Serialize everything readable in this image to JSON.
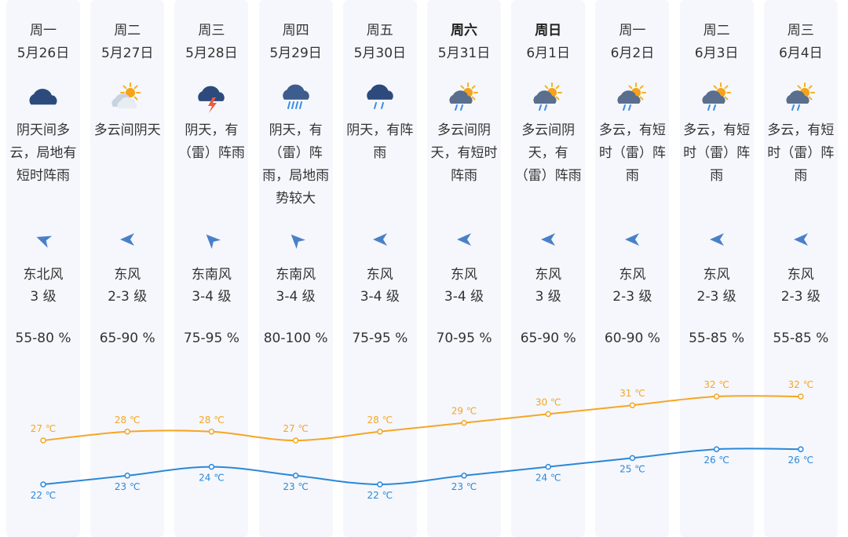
{
  "days": [
    {
      "dow": "周一",
      "date": "5月26日",
      "weather": "阴天间多云，局地有短时阵雨",
      "icon": "cloudy-icon",
      "wind_dir": "东北风",
      "wind_level": "3 级",
      "wind_arrow_deg": 20,
      "humidity": "55-80 %",
      "high": "27 ℃",
      "low": "22 ℃",
      "bold": false
    },
    {
      "dow": "周二",
      "date": "5月27日",
      "weather": "多云间阴天",
      "icon": "partly-cloudy-icon",
      "wind_dir": "东风",
      "wind_level": "2-3 级",
      "wind_arrow_deg": 0,
      "humidity": "65-90 %",
      "high": "28 ℃",
      "low": "23 ℃",
      "bold": false
    },
    {
      "dow": "周三",
      "date": "5月28日",
      "weather": "阴天，有（雷）阵雨",
      "icon": "thunderstorm-icon",
      "wind_dir": "东南风",
      "wind_level": "3-4 级",
      "wind_arrow_deg": 45,
      "humidity": "75-95 %",
      "high": "28 ℃",
      "low": "24 ℃",
      "bold": false
    },
    {
      "dow": "周四",
      "date": "5月29日",
      "weather": "阴天，有（雷）阵雨，局地雨势较大",
      "icon": "heavy-rain-icon",
      "wind_dir": "东南风",
      "wind_level": "3-4 级",
      "wind_arrow_deg": 45,
      "humidity": "80-100 %",
      "high": "27 ℃",
      "low": "23 ℃",
      "bold": false
    },
    {
      "dow": "周五",
      "date": "5月30日",
      "weather": "阴天，有阵雨",
      "icon": "rain-icon",
      "wind_dir": "东风",
      "wind_level": "3-4 级",
      "wind_arrow_deg": 0,
      "humidity": "75-95 %",
      "high": "28 ℃",
      "low": "22 ℃",
      "bold": false
    },
    {
      "dow": "周六",
      "date": "5月31日",
      "weather": "多云间阴天，有短时阵雨",
      "icon": "sun-cloud-rain-icon",
      "wind_dir": "东风",
      "wind_level": "3-4 级",
      "wind_arrow_deg": 0,
      "humidity": "70-95 %",
      "high": "29 ℃",
      "low": "23 ℃",
      "bold": true
    },
    {
      "dow": "周日",
      "date": "6月1日",
      "weather": "多云间阴天，有（雷）阵雨",
      "icon": "sun-cloud-rain-icon",
      "wind_dir": "东风",
      "wind_level": "3 级",
      "wind_arrow_deg": 0,
      "humidity": "65-90 %",
      "high": "30 ℃",
      "low": "24 ℃",
      "bold": true
    },
    {
      "dow": "周一",
      "date": "6月2日",
      "weather": "多云，有短时（雷）阵雨",
      "icon": "sun-cloud-rain-icon",
      "wind_dir": "东风",
      "wind_level": "2-3 级",
      "wind_arrow_deg": 0,
      "humidity": "60-90 %",
      "high": "31 ℃",
      "low": "25 ℃",
      "bold": false
    },
    {
      "dow": "周二",
      "date": "6月3日",
      "weather": "多云，有短时（雷）阵雨",
      "icon": "sun-cloud-rain-icon",
      "wind_dir": "东风",
      "wind_level": "2-3 级",
      "wind_arrow_deg": 0,
      "humidity": "55-85 %",
      "high": "32 ℃",
      "low": "26 ℃",
      "bold": false
    },
    {
      "dow": "周三",
      "date": "6月4日",
      "weather": "多云，有短时（雷）阵雨",
      "icon": "sun-cloud-rain-icon",
      "wind_dir": "东风",
      "wind_level": "2-3 级",
      "wind_arrow_deg": 0,
      "humidity": "55-85 %",
      "high": "32 ℃",
      "low": "26 ℃",
      "bold": false
    }
  ],
  "chart_data": {
    "type": "line",
    "categories": [
      "5月26日",
      "5月27日",
      "5月28日",
      "5月29日",
      "5月30日",
      "5月31日",
      "6月1日",
      "6月2日",
      "6月3日",
      "6月4日"
    ],
    "series": [
      {
        "values": [
          27,
          28,
          28,
          27,
          28,
          29,
          30,
          31,
          32,
          32
        ],
        "color": "#f5a623",
        "unit": "℃"
      },
      {
        "values": [
          22,
          23,
          24,
          23,
          22,
          23,
          24,
          25,
          26,
          26
        ],
        "color": "#2b88d8",
        "unit": "℃"
      }
    ]
  },
  "colors": {
    "high": "#f5a623",
    "low": "#2b88d8",
    "column_bg": "#f5f7fc",
    "wind_arrow": "#4a80c8"
  }
}
